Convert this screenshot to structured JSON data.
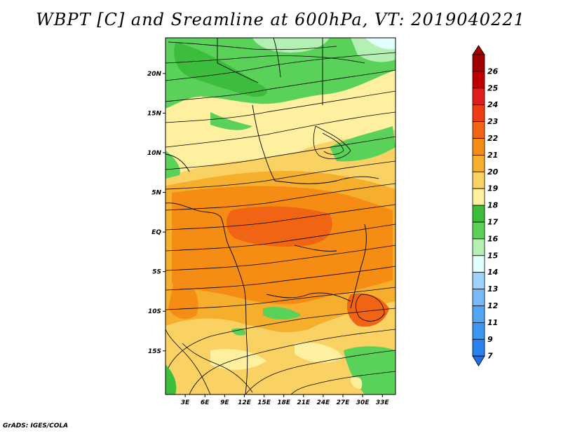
{
  "title": "WBPT [C] and Sreamline at 600hPa, VT: 2019040221",
  "credit": "GrADS: IGES/COLA",
  "map": {
    "projection": "lat-lon",
    "lat_range": [
      -20.5,
      24.5
    ],
    "lon_range": [
      0,
      35
    ],
    "lat_ticks": [
      {
        "value": 20,
        "label": "20N"
      },
      {
        "value": 15,
        "label": "15N"
      },
      {
        "value": 10,
        "label": "10N"
      },
      {
        "value": 5,
        "label": "5N"
      },
      {
        "value": 0,
        "label": "EQ"
      },
      {
        "value": -5,
        "label": "5S"
      },
      {
        "value": -10,
        "label": "10S"
      },
      {
        "value": -15,
        "label": "15S"
      }
    ],
    "lon_ticks": [
      {
        "value": 3,
        "label": "3E"
      },
      {
        "value": 6,
        "label": "6E"
      },
      {
        "value": 9,
        "label": "9E"
      },
      {
        "value": 12,
        "label": "12E"
      },
      {
        "value": 15,
        "label": "15E"
      },
      {
        "value": 18,
        "label": "18E"
      },
      {
        "value": 21,
        "label": "21E"
      },
      {
        "value": 24,
        "label": "24E"
      },
      {
        "value": 27,
        "label": "27E"
      },
      {
        "value": 30,
        "label": "30E"
      },
      {
        "value": 33,
        "label": "33E"
      }
    ]
  },
  "colorbar": {
    "levels": [
      {
        "label": "26",
        "color": "#a00000"
      },
      {
        "label": "25",
        "color": "#c00000"
      },
      {
        "label": "24",
        "color": "#e01e1e"
      },
      {
        "label": "23",
        "color": "#f03c14"
      },
      {
        "label": "22",
        "color": "#f06414"
      },
      {
        "label": "21",
        "color": "#f58c14"
      },
      {
        "label": "20",
        "color": "#f5af2d"
      },
      {
        "label": "19",
        "color": "#fad264"
      },
      {
        "label": "18",
        "color": "#fff0a0"
      },
      {
        "label": "17",
        "color": "#3cbe3c"
      },
      {
        "label": "16",
        "color": "#5ad25a"
      },
      {
        "label": "15",
        "color": "#b4f0b4"
      },
      {
        "label": "14",
        "color": "#e1ffff"
      },
      {
        "label": "13",
        "color": "#a0d2ff"
      },
      {
        "label": "12",
        "color": "#78b9fa"
      },
      {
        "label": "11",
        "color": "#50a5f5"
      },
      {
        "label": "9",
        "color": "#3c96f5"
      },
      {
        "label": "7",
        "color": "#2882f0"
      }
    ],
    "bottom_color": "#1e6eeb"
  },
  "fields": {
    "wbpt_units": "C",
    "level": "600hPa",
    "valid_time": "2019040221"
  }
}
